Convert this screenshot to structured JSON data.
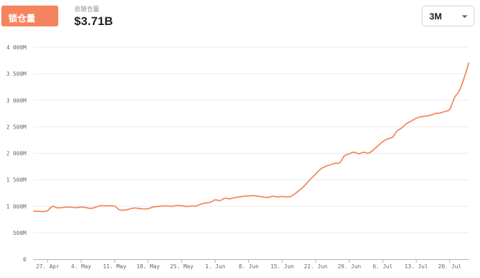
{
  "tab": {
    "label": "锁仓量"
  },
  "stat": {
    "label": "总锁仓量",
    "value": "$3.71B"
  },
  "range_select": {
    "value": "3M"
  },
  "colors": {
    "accent": "#f5855f",
    "line": "#f5855f",
    "grid": "#ececec",
    "axis": "#b0b0b0"
  },
  "chart_data": {
    "type": "line",
    "title": "",
    "xlabel": "",
    "ylabel": "",
    "ylim": [
      0,
      4000
    ],
    "y_unit": "M",
    "grid": true,
    "y_ticks": [
      {
        "value": 0,
        "label": "0"
      },
      {
        "value": 500,
        "label": "500M"
      },
      {
        "value": 1000,
        "label": "1 000M"
      },
      {
        "value": 1500,
        "label": "1 500M"
      },
      {
        "value": 2000,
        "label": "2 000M"
      },
      {
        "value": 2500,
        "label": "2 500M"
      },
      {
        "value": 3000,
        "label": "3 000M"
      },
      {
        "value": 3500,
        "label": "3 500M"
      },
      {
        "value": 4000,
        "label": "4 000M"
      }
    ],
    "x_ticks": [
      {
        "date": "2020-04-27",
        "label": "27. Apr"
      },
      {
        "date": "2020-05-04",
        "label": "4. May"
      },
      {
        "date": "2020-05-11",
        "label": "11. May"
      },
      {
        "date": "2020-05-18",
        "label": "18. May"
      },
      {
        "date": "2020-05-25",
        "label": "25. May"
      },
      {
        "date": "2020-06-01",
        "label": "1. Jun"
      },
      {
        "date": "2020-06-08",
        "label": "8. Jun"
      },
      {
        "date": "2020-06-15",
        "label": "15. Jun"
      },
      {
        "date": "2020-06-22",
        "label": "22. Jun"
      },
      {
        "date": "2020-06-29",
        "label": "29. Jun"
      },
      {
        "date": "2020-07-06",
        "label": "6. Jul"
      },
      {
        "date": "2020-07-13",
        "label": "13. Jul"
      },
      {
        "date": "2020-07-20",
        "label": "20. Jul"
      }
    ],
    "x_range": [
      "2020-04-24",
      "2020-07-24"
    ],
    "series": [
      {
        "points": [
          [
            "2020-04-24",
            910
          ],
          [
            "2020-04-25",
            905
          ],
          [
            "2020-04-26",
            900
          ],
          [
            "2020-04-27",
            920
          ],
          [
            "2020-04-28",
            995
          ],
          [
            "2020-04-29",
            970
          ],
          [
            "2020-04-30",
            975
          ],
          [
            "2020-05-01",
            985
          ],
          [
            "2020-05-02",
            980
          ],
          [
            "2020-05-03",
            975
          ],
          [
            "2020-05-04",
            985
          ],
          [
            "2020-05-05",
            975
          ],
          [
            "2020-05-06",
            960
          ],
          [
            "2020-05-07",
            980
          ],
          [
            "2020-05-08",
            1010
          ],
          [
            "2020-05-09",
            1005
          ],
          [
            "2020-05-10",
            1010
          ],
          [
            "2020-05-11",
            1000
          ],
          [
            "2020-05-12",
            935
          ],
          [
            "2020-05-13",
            925
          ],
          [
            "2020-05-14",
            945
          ],
          [
            "2020-05-15",
            965
          ],
          [
            "2020-05-16",
            960
          ],
          [
            "2020-05-17",
            950
          ],
          [
            "2020-05-18",
            955
          ],
          [
            "2020-05-19",
            985
          ],
          [
            "2020-05-20",
            995
          ],
          [
            "2020-05-21",
            1005
          ],
          [
            "2020-05-22",
            1005
          ],
          [
            "2020-05-23",
            1000
          ],
          [
            "2020-05-24",
            1015
          ],
          [
            "2020-05-25",
            1010
          ],
          [
            "2020-05-26",
            995
          ],
          [
            "2020-05-27",
            1005
          ],
          [
            "2020-05-28",
            1005
          ],
          [
            "2020-05-29",
            1040
          ],
          [
            "2020-05-30",
            1060
          ],
          [
            "2020-05-31",
            1075
          ],
          [
            "2020-06-01",
            1120
          ],
          [
            "2020-06-02",
            1105
          ],
          [
            "2020-06-03",
            1150
          ],
          [
            "2020-06-04",
            1140
          ],
          [
            "2020-06-05",
            1160
          ],
          [
            "2020-06-06",
            1175
          ],
          [
            "2020-06-07",
            1190
          ],
          [
            "2020-06-08",
            1195
          ],
          [
            "2020-06-09",
            1200
          ],
          [
            "2020-06-10",
            1190
          ],
          [
            "2020-06-11",
            1175
          ],
          [
            "2020-06-12",
            1165
          ],
          [
            "2020-06-13",
            1190
          ],
          [
            "2020-06-14",
            1175
          ],
          [
            "2020-06-15",
            1185
          ],
          [
            "2020-06-16",
            1175
          ],
          [
            "2020-06-17",
            1195
          ],
          [
            "2020-06-18",
            1260
          ],
          [
            "2020-06-19",
            1330
          ],
          [
            "2020-06-20",
            1420
          ],
          [
            "2020-06-21",
            1520
          ],
          [
            "2020-06-22",
            1610
          ],
          [
            "2020-06-23",
            1700
          ],
          [
            "2020-06-24",
            1750
          ],
          [
            "2020-06-25",
            1780
          ],
          [
            "2020-06-26",
            1810
          ],
          [
            "2020-06-27",
            1820
          ],
          [
            "2020-06-28",
            1950
          ],
          [
            "2020-06-29",
            1990
          ],
          [
            "2020-06-30",
            2020
          ],
          [
            "2020-07-01",
            1990
          ],
          [
            "2020-07-02",
            2020
          ],
          [
            "2020-07-03",
            2000
          ],
          [
            "2020-07-04",
            2060
          ],
          [
            "2020-07-05",
            2140
          ],
          [
            "2020-07-06",
            2220
          ],
          [
            "2020-07-07",
            2270
          ],
          [
            "2020-07-08",
            2300
          ],
          [
            "2020-07-09",
            2420
          ],
          [
            "2020-07-10",
            2480
          ],
          [
            "2020-07-11",
            2560
          ],
          [
            "2020-07-12",
            2610
          ],
          [
            "2020-07-13",
            2660
          ],
          [
            "2020-07-14",
            2690
          ],
          [
            "2020-07-15",
            2700
          ],
          [
            "2020-07-16",
            2720
          ],
          [
            "2020-07-17",
            2750
          ],
          [
            "2020-07-18",
            2760
          ],
          [
            "2020-07-19",
            2790
          ],
          [
            "2020-07-20",
            2830
          ],
          [
            "2020-07-21",
            3050
          ],
          [
            "2020-07-22",
            3180
          ],
          [
            "2020-07-23",
            3420
          ],
          [
            "2020-07-24",
            3710
          ]
        ]
      }
    ]
  }
}
